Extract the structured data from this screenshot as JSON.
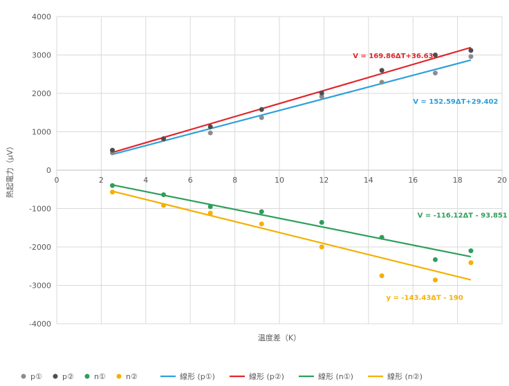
{
  "chart_data": {
    "type": "scatter",
    "title": "",
    "xlabel": "温度差（K）",
    "ylabel": "熱起電力（μV）",
    "xlim": [
      0,
      20
    ],
    "ylim": [
      -4000,
      4000
    ],
    "xticks": [
      0,
      2,
      4,
      6,
      8,
      10,
      12,
      14,
      16,
      18,
      20
    ],
    "yticks": [
      4000,
      3000,
      2000,
      1000,
      0,
      -1000,
      -2000,
      -3000,
      -4000
    ],
    "xtick_labels": [
      "0",
      "2",
      "4",
      "6",
      "8",
      "10",
      "12",
      "14",
      "16",
      "18",
      "20"
    ],
    "ytick_labels": [
      "4000",
      "3000",
      "2000",
      "1000",
      "0",
      "-1000",
      "-2000",
      "-3000",
      "-4000"
    ],
    "grid": true,
    "legend_position": "bottom",
    "series": [
      {
        "name": "p①",
        "color": "#8c8c8c",
        "kind": "points",
        "x": [
          2.5,
          4.8,
          6.9,
          9.2,
          11.9,
          14.6,
          17.0,
          18.6
        ],
        "y": [
          450,
          800,
          970,
          1370,
          1920,
          2290,
          2530,
          2960
        ]
      },
      {
        "name": "p②",
        "color": "#4d4d4d",
        "kind": "points",
        "x": [
          2.5,
          4.8,
          6.9,
          9.2,
          11.9,
          14.6,
          17.0,
          18.6
        ],
        "y": [
          520,
          820,
          1130,
          1580,
          2010,
          2600,
          3000,
          3120
        ]
      },
      {
        "name": "n①",
        "color": "#2e9e5b",
        "kind": "points",
        "x": [
          2.5,
          4.8,
          6.9,
          9.2,
          11.9,
          14.6,
          17.0,
          18.6
        ],
        "y": [
          -400,
          -640,
          -950,
          -1080,
          -1360,
          -1750,
          -2330,
          -2100
        ]
      },
      {
        "name": "n②",
        "color": "#f5b000",
        "kind": "points",
        "x": [
          2.5,
          4.8,
          6.9,
          9.2,
          11.9,
          14.6,
          17.0,
          18.6
        ],
        "y": [
          -570,
          -920,
          -1120,
          -1400,
          -2000,
          -2750,
          -2860,
          -2410
        ]
      },
      {
        "name": "線形 (p①)",
        "color": "#2e9fdb",
        "kind": "trend",
        "slope": 152.59,
        "intercept": 29.402,
        "x_range": [
          2.5,
          18.6
        ]
      },
      {
        "name": "線形 (p②)",
        "color": "#e0262b",
        "kind": "trend",
        "slope": 169.86,
        "intercept": 36.63,
        "x_range": [
          2.5,
          18.6
        ]
      },
      {
        "name": "線形 (n①)",
        "color": "#2e9e5b",
        "kind": "trend",
        "slope": -116.12,
        "intercept": -93.851,
        "x_range": [
          2.5,
          18.6
        ]
      },
      {
        "name": "線形 (n②)",
        "color": "#f5b000",
        "kind": "trend",
        "slope": -143.43,
        "intercept": -190,
        "x_range": [
          2.5,
          18.6
        ]
      }
    ],
    "annotations": [
      {
        "text": "V = 169.86ΔT+36.63",
        "color": "#e0262b",
        "x": 13.3,
        "y": 2920
      },
      {
        "text": "V = 152.59ΔT+29.402",
        "color": "#2e9fdb",
        "x": 16.0,
        "y": 1730
      },
      {
        "text": "V = -116.12ΔT - 93.851",
        "color": "#2e9e5b",
        "x": 16.2,
        "y": -1230
      },
      {
        "text": "y = -143.43ΔT - 190",
        "color": "#f5b000",
        "x": 14.8,
        "y": -3380
      }
    ],
    "legend": [
      "p①",
      "p②",
      "n①",
      "n②",
      "線形 (p①)",
      "線形 (p②)",
      "線形 (n①)",
      "線形 (n②)"
    ]
  }
}
